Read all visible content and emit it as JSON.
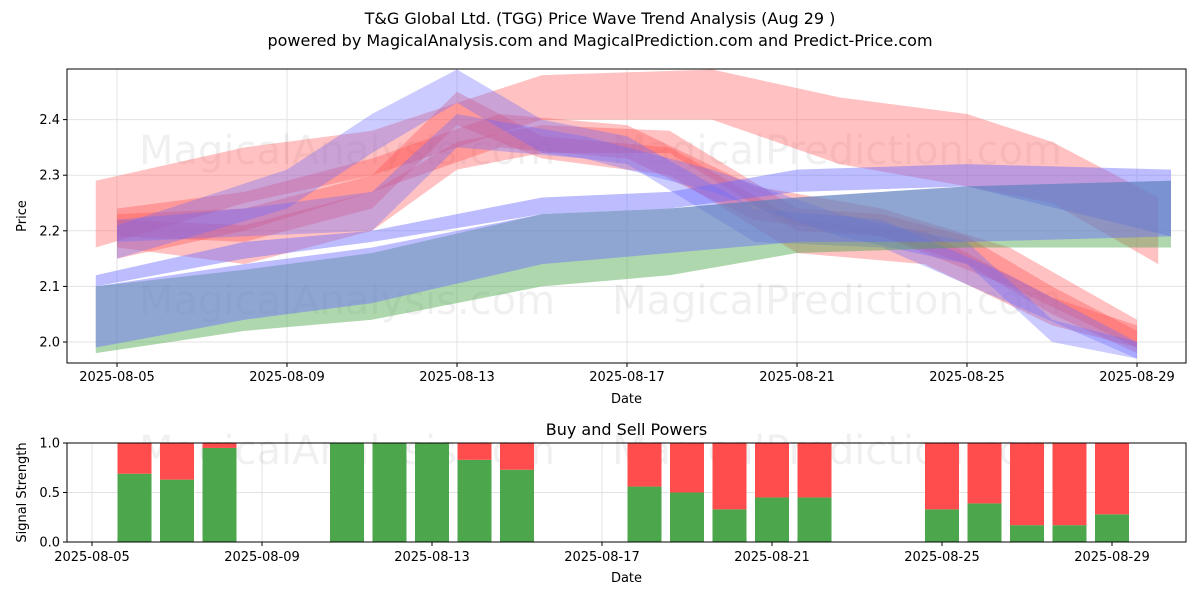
{
  "title": "T&G Global Ltd. (TGG) Price Wave Trend Analysis (Aug 29 )",
  "subtitle": "powered by MagicalAnalysis.com and MagicalPrediction.com and Predict-Price.com",
  "watermarks": [
    "MagicalAnalysis.com",
    "MagicalPrediction.com"
  ],
  "colors": {
    "red": "#ff4d4d",
    "blue": "#6b6bff",
    "green": "#4ca64c",
    "sell": "#ff4d4d",
    "buy": "#4ca64c"
  },
  "chart_data": [
    {
      "type": "area",
      "title": "",
      "xlabel": "Date",
      "ylabel": "Price",
      "xlim": [
        "2025-08-04",
        "2025-08-30"
      ],
      "ylim": [
        1.96,
        2.49
      ],
      "x_ticks": [
        "2025-08-05",
        "2025-08-09",
        "2025-08-13",
        "2025-08-17",
        "2025-08-21",
        "2025-08-25",
        "2025-08-29"
      ],
      "y_ticks": [
        2.0,
        2.1,
        2.2,
        2.3,
        2.4
      ],
      "grid": true,
      "series": [
        {
          "color": "red",
          "band": [
            [
              "2025-08-04.5",
              2.17,
              2.29
            ],
            [
              "2025-08-08",
              2.25,
              2.35
            ],
            [
              "2025-08-11",
              2.3,
              2.38
            ],
            [
              "2025-08-15",
              2.4,
              2.48
            ],
            [
              "2025-08-19",
              2.4,
              2.49
            ],
            [
              "2025-08-22",
              2.32,
              2.44
            ],
            [
              "2025-08-25",
              2.28,
              2.41
            ],
            [
              "2025-08-27",
              2.25,
              2.36
            ],
            [
              "2025-08-29.5",
              2.14,
              2.26
            ]
          ]
        },
        {
          "color": "red",
          "band": [
            [
              "2025-08-05",
              2.17,
              2.22
            ],
            [
              "2025-08-08",
              2.14,
              2.21
            ],
            [
              "2025-08-11",
              2.2,
              2.27
            ],
            [
              "2025-08-13",
              2.31,
              2.36
            ],
            [
              "2025-08-15",
              2.34,
              2.39
            ],
            [
              "2025-08-18",
              2.34,
              2.38
            ],
            [
              "2025-08-21",
              2.2,
              2.24
            ],
            [
              "2025-08-23",
              2.19,
              2.23
            ],
            [
              "2025-08-25",
              2.14,
              2.19
            ],
            [
              "2025-08-27",
              2.05,
              2.1
            ],
            [
              "2025-08-29",
              1.98,
              2.02
            ]
          ]
        },
        {
          "color": "red",
          "band": [
            [
              "2025-08-05",
              2.19,
              2.23
            ],
            [
              "2025-08-08",
              2.18,
              2.24
            ],
            [
              "2025-08-11",
              2.24,
              2.3
            ],
            [
              "2025-08-13",
              2.39,
              2.45
            ],
            [
              "2025-08-15",
              2.33,
              2.37
            ],
            [
              "2025-08-18",
              2.3,
              2.35
            ],
            [
              "2025-08-21",
              2.16,
              2.22
            ],
            [
              "2025-08-24",
              2.14,
              2.2
            ],
            [
              "2025-08-27",
              2.03,
              2.08
            ],
            [
              "2025-08-29",
              1.99,
              2.03
            ]
          ]
        },
        {
          "color": "red",
          "band": [
            [
              "2025-08-05",
              2.15,
              2.24
            ],
            [
              "2025-08-08",
              2.2,
              2.27
            ],
            [
              "2025-08-11",
              2.27,
              2.33
            ],
            [
              "2025-08-14",
              2.35,
              2.41
            ],
            [
              "2025-08-17",
              2.33,
              2.39
            ],
            [
              "2025-08-20",
              2.22,
              2.28
            ],
            [
              "2025-08-23",
              2.19,
              2.24
            ],
            [
              "2025-08-26",
              2.1,
              2.17
            ],
            [
              "2025-08-29",
              1.99,
              2.04
            ]
          ]
        },
        {
          "color": "blue",
          "band": [
            [
              "2025-08-05",
              2.15,
              2.21
            ],
            [
              "2025-08-09",
              2.24,
              2.31
            ],
            [
              "2025-08-11",
              2.34,
              2.41
            ],
            [
              "2025-08-13",
              2.43,
              2.49
            ],
            [
              "2025-08-15",
              2.34,
              2.4
            ],
            [
              "2025-08-17",
              2.32,
              2.37
            ],
            [
              "2025-08-20",
              2.18,
              2.24
            ],
            [
              "2025-08-23",
              2.17,
              2.22
            ],
            [
              "2025-08-26",
              2.07,
              2.12
            ],
            [
              "2025-08-29",
              1.97,
              2.0
            ]
          ]
        },
        {
          "color": "blue",
          "band": [
            [
              "2025-08-05",
              2.18,
              2.22
            ],
            [
              "2025-08-08",
              2.19,
              2.24
            ],
            [
              "2025-08-11",
              2.2,
              2.27
            ],
            [
              "2025-08-13",
              2.35,
              2.41
            ],
            [
              "2025-08-16",
              2.33,
              2.37
            ],
            [
              "2025-08-19",
              2.27,
              2.31
            ],
            [
              "2025-08-22",
              2.19,
              2.23
            ],
            [
              "2025-08-25",
              2.14,
              2.18
            ],
            [
              "2025-08-27",
              2.0,
              2.04
            ],
            [
              "2025-08-29",
              1.97,
              2.0
            ]
          ]
        },
        {
          "color": "blue",
          "band": [
            [
              "2025-08-04.5",
              2.1,
              2.12
            ],
            [
              "2025-08-08",
              2.15,
              2.18
            ],
            [
              "2025-08-11",
              2.18,
              2.2
            ],
            [
              "2025-08-15",
              2.23,
              2.26
            ],
            [
              "2025-08-18",
              2.24,
              2.27
            ],
            [
              "2025-08-21",
              2.27,
              2.31
            ],
            [
              "2025-08-25",
              2.28,
              2.32
            ],
            [
              "2025-08-29.8",
              2.19,
              2.31
            ]
          ]
        },
        {
          "color": "green",
          "band": [
            [
              "2025-08-04.5",
              1.98,
              2.1
            ],
            [
              "2025-08-08",
              2.02,
              2.13
            ],
            [
              "2025-08-11",
              2.04,
              2.16
            ],
            [
              "2025-08-15",
              2.1,
              2.23
            ],
            [
              "2025-08-18",
              2.12,
              2.24
            ],
            [
              "2025-08-21",
              2.16,
              2.26
            ],
            [
              "2025-08-25",
              2.17,
              2.28
            ],
            [
              "2025-08-29.8",
              2.17,
              2.29
            ]
          ]
        },
        {
          "color": "blue",
          "band": [
            [
              "2025-08-04.5",
              1.99,
              2.1
            ],
            [
              "2025-08-08",
              2.04,
              2.14
            ],
            [
              "2025-08-11",
              2.07,
              2.17
            ],
            [
              "2025-08-15",
              2.14,
              2.23
            ],
            [
              "2025-08-18",
              2.16,
              2.24
            ],
            [
              "2025-08-21",
              2.18,
              2.26
            ],
            [
              "2025-08-25",
              2.18,
              2.28
            ],
            [
              "2025-08-29.8",
              2.19,
              2.29
            ]
          ]
        }
      ]
    },
    {
      "type": "bar",
      "title": "Buy and Sell Powers",
      "xlabel": "Date",
      "ylabel": "Signal Strength",
      "ylim": [
        0,
        1
      ],
      "y_ticks": [
        0.0,
        0.5,
        1.0
      ],
      "x_ticks": [
        "2025-08-05",
        "2025-08-09",
        "2025-08-13",
        "2025-08-17",
        "2025-08-21",
        "2025-08-25",
        "2025-08-29"
      ],
      "categories": [
        "2025-08-06",
        "2025-08-07",
        "2025-08-08",
        "2025-08-11",
        "2025-08-12",
        "2025-08-13",
        "2025-08-14",
        "2025-08-15",
        "2025-08-18",
        "2025-08-19",
        "2025-08-20",
        "2025-08-21",
        "2025-08-22",
        "2025-08-25",
        "2025-08-26",
        "2025-08-27",
        "2025-08-28",
        "2025-08-29"
      ],
      "series": [
        {
          "values": [
            0.69,
            0.63,
            0.95,
            1.0,
            1.0,
            1.0,
            0.83,
            0.73,
            0.56,
            0.5,
            0.33,
            0.45,
            0.45,
            0.33,
            0.39,
            0.17,
            0.17,
            0.28
          ],
          "color": "buy"
        },
        {
          "values": [
            0.31,
            0.37,
            0.05,
            0.0,
            0.0,
            0.0,
            0.17,
            0.27,
            0.44,
            0.5,
            0.67,
            0.55,
            0.55,
            0.67,
            0.61,
            0.83,
            0.83,
            0.72
          ],
          "color": "sell"
        }
      ]
    }
  ]
}
